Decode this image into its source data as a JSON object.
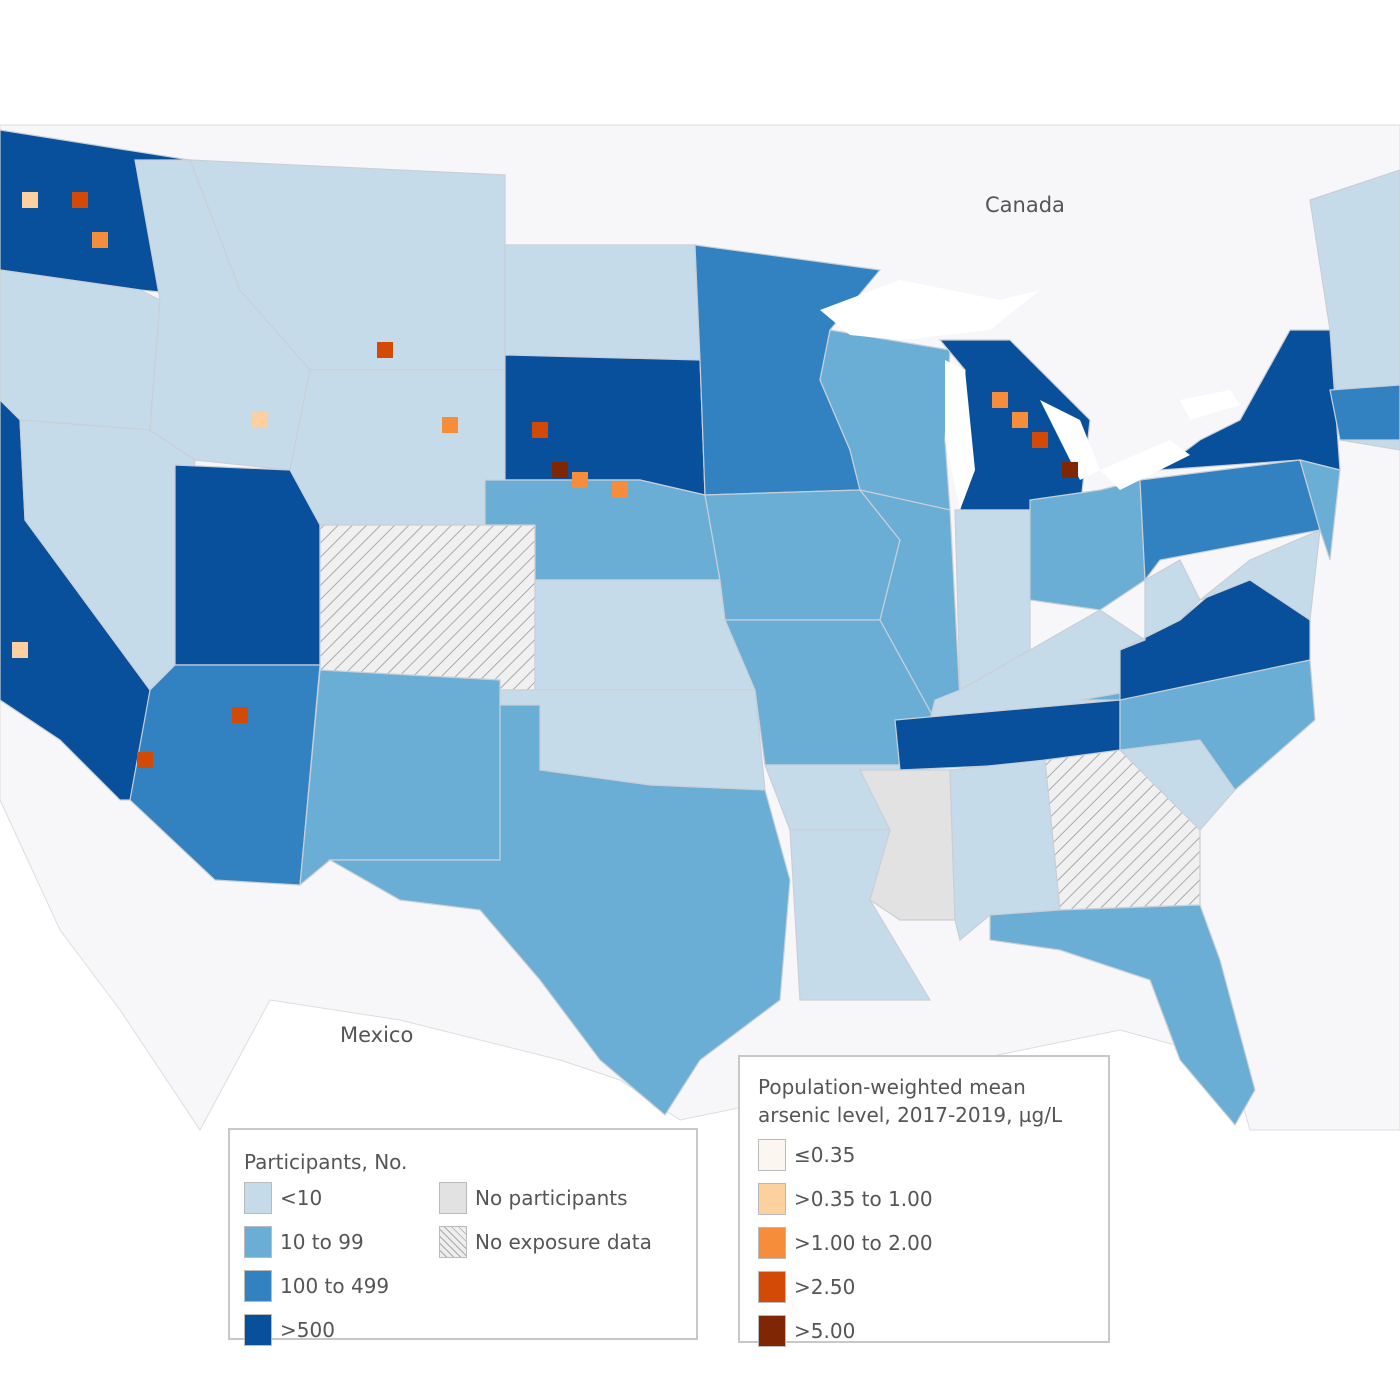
{
  "labels": {
    "canada": "Canada",
    "mexico": "Mexico"
  },
  "colors": {
    "<10": "#c6dbea",
    "10 to 99": "#6aaed6",
    "100 to 499": "#3282c2",
    ">500": "#08509b",
    "No participants": "#e2e2e2",
    "No exposure data": "hatch",
    "land": "#f7f7f9",
    "water": "#ffffff"
  },
  "participants_legend": {
    "title": "Participants, No.",
    "items": [
      "<10",
      "10 to 99",
      "100 to 499",
      ">500"
    ],
    "extra": [
      "No participants",
      "No exposure data"
    ]
  },
  "arsenic_legend": {
    "title_line1": "Population-weighted mean",
    "title_line2": "arsenic level, 2017-2019, µg/L",
    "items": [
      {
        "label": "≤0.35",
        "color": "#fbf6ef"
      },
      {
        "label": ">0.35 to 1.00",
        "color": "#fdd09f"
      },
      {
        "label": ">1.00 to 2.00",
        "color": "#f58d3b"
      },
      {
        "label": ">2.50",
        "color": "#d34a07"
      },
      {
        "label": ">5.00",
        "color": "#7f2704"
      }
    ]
  },
  "states": {
    "WA": ">500",
    "OR": "<10",
    "CA": ">500",
    "NV": "<10",
    "ID": "<10",
    "MT": "<10",
    "WY": "<10",
    "UT": ">500",
    "CO": "No exposure data",
    "AZ": "100 to 499",
    "NM": "10 to 99",
    "ND": "<10",
    "SD": ">500",
    "NE": "10 to 99",
    "KS": "<10",
    "OK": "<10",
    "TX": "10 to 99",
    "MN": "100 to 499",
    "IA": "10 to 99",
    "MO": "10 to 99",
    "AR": "<10",
    "LA": "<10",
    "WI": "10 to 99",
    "IL": "10 to 99",
    "MI": ">500",
    "IN": "<10",
    "OH": "10 to 99",
    "KY": "<10",
    "TN": ">500",
    "MS": "No participants",
    "AL": "<10",
    "GA": "No exposure data",
    "FL": "10 to 99",
    "SC": "<10",
    "NC": "10 to 99",
    "VA": ">500",
    "WV": "<10",
    "PA": "100 to 499",
    "NY": ">500",
    "NE_US": "<10",
    "MA": "100 to 499",
    "NJ": "10 to 99",
    "MD": "<10"
  }
}
